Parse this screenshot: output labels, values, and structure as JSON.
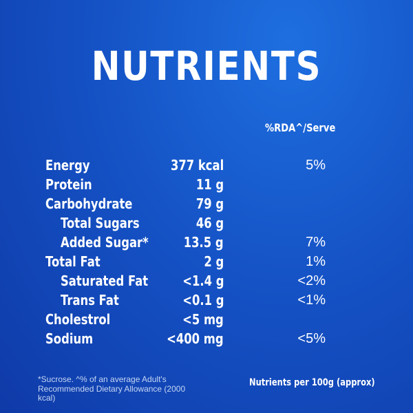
{
  "title": "NUTRIENTS",
  "column_header": "%RDA^/Serve",
  "rows": [
    {
      "name": "Energy",
      "amount": "377 kcal",
      "rda": "5%"
    },
    {
      "name": "Protein",
      "amount": "11 g",
      "rda": ""
    },
    {
      "name": "Carbohydrate",
      "amount": "79 g",
      "rda": ""
    },
    {
      "name": "Total Sugars",
      "amount": "46 g",
      "rda": ""
    },
    {
      "name": "Added Sugar*",
      "amount": "13.5 g",
      "rda": "7%"
    },
    {
      "name": "Total Fat",
      "amount": "2 g",
      "rda": "1%"
    },
    {
      "name": "Saturated Fat",
      "amount": "<1.4 g",
      "rda": "<2%"
    },
    {
      "name": "Trans Fat",
      "amount": "<0.1 g",
      "rda": "<1%"
    },
    {
      "name": "Cholestrol",
      "amount": "<5 mg",
      "rda": ""
    },
    {
      "name": "Sodium",
      "amount": "<400 mg",
      "rda": "<5%"
    }
  ],
  "footnote": "*Sucrose. ^% of an average Adult's Recommended Dietary Allowance (2000 kcal)",
  "basis": "Nutrients per 100g (approx)"
}
